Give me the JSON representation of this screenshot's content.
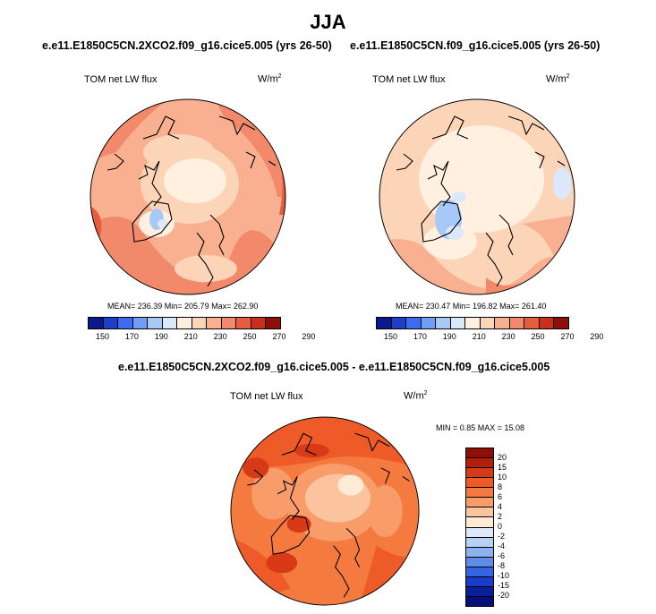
{
  "title": "JJA",
  "panels": [
    {
      "title": "e.e11.E1850C5CN.2XCO2.f09_g16.cice5.005 (yrs 26-50)",
      "variable": "TOM net LW flux",
      "units_base": "W/m",
      "units_exp": "2",
      "stats": "MEAN= 236.39  Min= 205.79  Max= 262.90"
    },
    {
      "title": "e.e11.E1850C5CN.f09_g16.cice5.005 (yrs 26-50)",
      "variable": "TOM net LW flux",
      "units_base": "W/m",
      "units_exp": "2",
      "stats": "MEAN= 230.47  Min= 196.82  Max= 261.40"
    },
    {
      "title": "e.e11.E1850C5CN.2XCO2.f09_g16.cice5.005 - e.e11.E1850C5CN.f09_g16.cice5.005",
      "variable": "TOM net LW flux",
      "units_base": "W/m",
      "units_exp": "2",
      "stats": "MIN =   0.85 MAX =  15.08"
    }
  ],
  "chart_data": [
    {
      "type": "heatmap",
      "projection": "north-polar-stereographic",
      "title": "e.e11.E1850C5CN.2XCO2.f09_g16.cice5.005 (yrs 26-50)",
      "variable": "TOM net LW flux",
      "units": "W/m2",
      "mean": 236.39,
      "min": 205.79,
      "max": 262.9,
      "colorbar_levels": [
        150,
        170,
        190,
        210,
        230,
        250,
        270,
        290
      ],
      "colorbar_colors": [
        "#0a1a8c",
        "#1e3fc8",
        "#3b6cf0",
        "#6e9ef6",
        "#a8c8f8",
        "#dbe8fb",
        "#fff0e0",
        "#fcd5b8",
        "#f8b090",
        "#f2896a",
        "#e65c3e",
        "#c8301c",
        "#8f0e06"
      ]
    },
    {
      "type": "heatmap",
      "projection": "north-polar-stereographic",
      "title": "e.e11.E1850C5CN.f09_g16.cice5.005 (yrs 26-50)",
      "variable": "TOM net LW flux",
      "units": "W/m2",
      "mean": 230.47,
      "min": 196.82,
      "max": 261.4,
      "colorbar_levels": [
        150,
        170,
        190,
        210,
        230,
        250,
        270,
        290
      ],
      "colorbar_colors": [
        "#0a1a8c",
        "#1e3fc8",
        "#3b6cf0",
        "#6e9ef6",
        "#a8c8f8",
        "#dbe8fb",
        "#fff0e0",
        "#fcd5b8",
        "#f8b090",
        "#f2896a",
        "#e65c3e",
        "#c8301c",
        "#8f0e06"
      ]
    },
    {
      "type": "heatmap",
      "projection": "north-polar-stereographic",
      "title": "e.e11.E1850C5CN.2XCO2.f09_g16.cice5.005 - e.e11.E1850C5CN.f09_g16.cice5.005",
      "variable": "TOM net LW flux",
      "units": "W/m2",
      "min": 0.85,
      "max": 15.08,
      "colorbar_levels": [
        20,
        15,
        10,
        8,
        6,
        4,
        2,
        0,
        -2,
        -4,
        -6,
        -8,
        -10,
        -15,
        -20
      ],
      "colorbar_colors": [
        "#8f0e06",
        "#b41e0c",
        "#d83a18",
        "#ee5a28",
        "#f47a40",
        "#f89c6a",
        "#fcc49e",
        "#fdebd6",
        "#dde8f8",
        "#b8d0f4",
        "#8eb2ee",
        "#5e8ce8",
        "#3464e0",
        "#1a3cc8",
        "#0c1e9a",
        "#05107a"
      ]
    }
  ]
}
